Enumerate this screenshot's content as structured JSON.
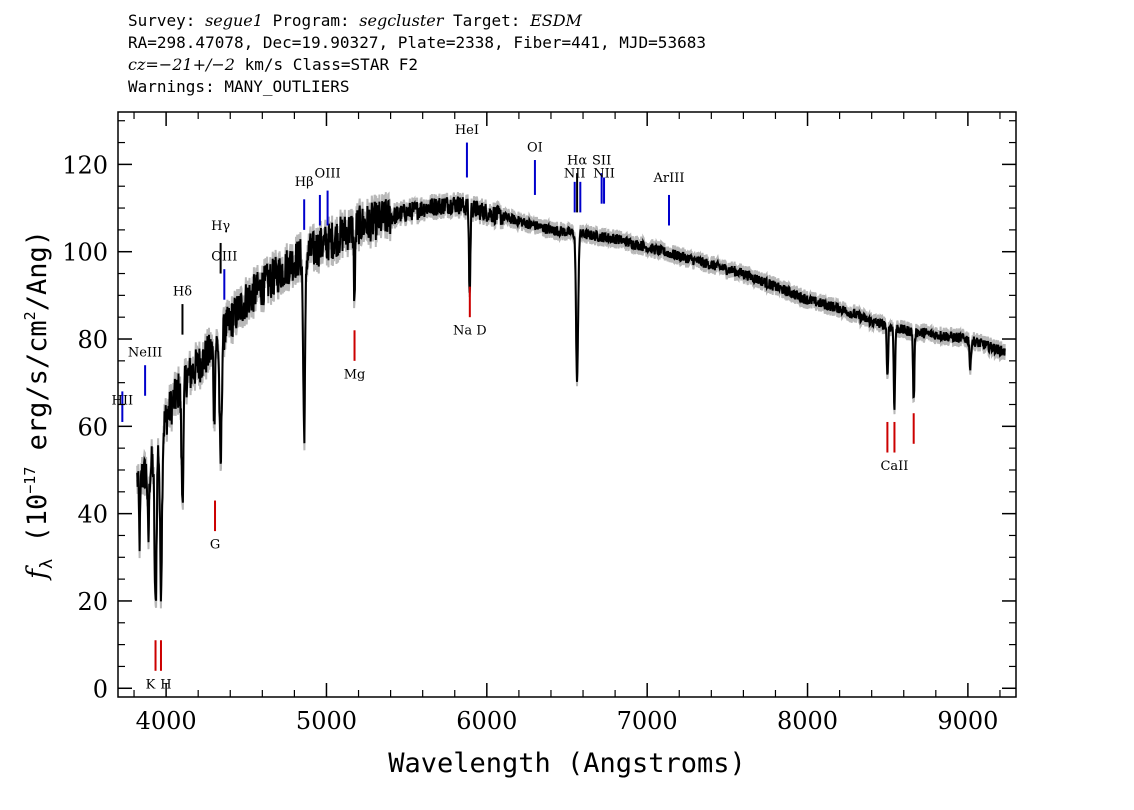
{
  "header": {
    "line1": {
      "survey_label": "Survey:",
      "survey": "segue1",
      "program_label": "Program:",
      "program": "segcluster",
      "target_label": "Target:",
      "target": "ESDM"
    },
    "line2": "RA=298.47078, Dec=19.90327, Plate=2338, Fiber=441, MJD=53683",
    "line3": {
      "cz_label": "cz=",
      "cz": "−21+/−2",
      "rest": " km/s Class=STAR F2"
    },
    "line4": "Warnings: MANY_OUTLIERS"
  },
  "chart_data": {
    "type": "line",
    "xlabel": "Wavelength (Angstroms)",
    "ylabel": "f_λ (10^-17 erg/s/cm^2/Ang)",
    "ylabel_parts": {
      "f": "f",
      "lambda": "λ",
      "open": " (10",
      "exp1": "−17",
      "mid": " erg/s/cm",
      "exp2": "2",
      "close": "/Ang)"
    },
    "xlim": [
      3700,
      9300
    ],
    "ylim": [
      -2,
      132
    ],
    "x_ticks": [
      4000,
      5000,
      6000,
      7000,
      8000,
      9000
    ],
    "x_tick_labels": [
      "4000",
      "5000",
      "6000",
      "7000",
      "8000",
      "9000"
    ],
    "y_ticks": [
      0,
      20,
      40,
      60,
      80,
      100,
      120
    ],
    "y_tick_labels": [
      "0",
      "20",
      "40",
      "60",
      "80",
      "100",
      "120"
    ],
    "grid": false,
    "series": [
      {
        "color": "#000000",
        "error_color": "#b8b8b8",
        "continuum": [
          [
            3820,
            48
          ],
          [
            3900,
            50
          ],
          [
            4000,
            62
          ],
          [
            4100,
            70
          ],
          [
            4200,
            74
          ],
          [
            4300,
            78
          ],
          [
            4400,
            84
          ],
          [
            4500,
            89
          ],
          [
            4600,
            92
          ],
          [
            4700,
            95
          ],
          [
            4800,
            98
          ],
          [
            4900,
            100
          ],
          [
            5000,
            102
          ],
          [
            5100,
            104
          ],
          [
            5200,
            106
          ],
          [
            5300,
            107
          ],
          [
            5400,
            108
          ],
          [
            5500,
            109
          ],
          [
            5600,
            110
          ],
          [
            5700,
            110.5
          ],
          [
            5800,
            111
          ],
          [
            5900,
            110
          ],
          [
            6000,
            109
          ],
          [
            6100,
            108
          ],
          [
            6200,
            107
          ],
          [
            6300,
            106
          ],
          [
            6400,
            105
          ],
          [
            6500,
            104.5
          ],
          [
            6600,
            104
          ],
          [
            6700,
            103.5
          ],
          [
            6800,
            103
          ],
          [
            6900,
            102
          ],
          [
            7000,
            101
          ],
          [
            7200,
            99
          ],
          [
            7400,
            97
          ],
          [
            7600,
            95
          ],
          [
            7800,
            92
          ],
          [
            8000,
            89
          ],
          [
            8200,
            87
          ],
          [
            8400,
            84
          ],
          [
            8600,
            82
          ],
          [
            8800,
            81
          ],
          [
            9000,
            80
          ],
          [
            9230,
            77
          ]
        ],
        "absorption": [
          {
            "x": 3835,
            "depth": 14
          },
          {
            "x": 3889,
            "depth": 16
          },
          {
            "x": 3934,
            "depth": 36
          },
          {
            "x": 3968,
            "depth": 34
          },
          {
            "x": 4102,
            "depth": 26
          },
          {
            "x": 4300,
            "depth": 16
          },
          {
            "x": 4340,
            "depth": 30
          },
          {
            "x": 4861,
            "depth": 40
          },
          {
            "x": 5175,
            "depth": 16
          },
          {
            "x": 5893,
            "depth": 20
          },
          {
            "x": 6563,
            "depth": 34
          },
          {
            "x": 8498,
            "depth": 12
          },
          {
            "x": 8542,
            "depth": 18
          },
          {
            "x": 8662,
            "depth": 16
          },
          {
            "x": 9015,
            "depth": 7
          }
        ]
      }
    ],
    "emission_lines": [
      {
        "label": "HII",
        "x": 3727,
        "y0": 61,
        "y1": 68,
        "label_y": 65,
        "color": "#0000cc"
      },
      {
        "label": "NeIII",
        "x": 3869,
        "y0": 67,
        "y1": 74,
        "label_y": 76,
        "color": "#0000cc"
      },
      {
        "label": "Hδ",
        "x": 4102,
        "y0": 81,
        "y1": 88,
        "label_y": 90,
        "color": "#000000"
      },
      {
        "label": "Hγ",
        "x": 4340,
        "y0": 95,
        "y1": 102,
        "label_y": 105,
        "color": "#000000"
      },
      {
        "label": "OIII",
        "x": 4363,
        "y0": 89,
        "y1": 96,
        "label_y": 98,
        "color": "#0000cc"
      },
      {
        "label": "Hβ",
        "x": 4861,
        "y0": 105,
        "y1": 112,
        "label_y": 115,
        "color": "#0000cc"
      },
      {
        "label": "",
        "x": 4959,
        "y0": 106,
        "y1": 113,
        "label_y": 0,
        "color": "#0000cc"
      },
      {
        "label": "OIII",
        "x": 5007,
        "y0": 106,
        "y1": 114,
        "label_y": 117,
        "color": "#0000cc"
      },
      {
        "label": "HeI",
        "x": 5876,
        "y0": 117,
        "y1": 125,
        "label_y": 127,
        "color": "#0000cc"
      },
      {
        "label": "OI",
        "x": 6300,
        "y0": 113,
        "y1": 121,
        "label_y": 123,
        "color": "#0000cc"
      },
      {
        "label": "NII",
        "x": 6548,
        "y0": 109,
        "y1": 116,
        "label_y": 117,
        "color": "#0000cc"
      },
      {
        "label": "Hα",
        "x": 6563,
        "y0": 109,
        "y1": 118,
        "label_y": 120,
        "color": "#000000"
      },
      {
        "label": "",
        "x": 6583,
        "y0": 109,
        "y1": 116,
        "label_y": 0,
        "color": "#0000cc"
      },
      {
        "label": "SII",
        "x": 6716,
        "y0": 111,
        "y1": 118,
        "label_y": 120,
        "color": "#0000cc"
      },
      {
        "label": "NII",
        "x": 6731,
        "y0": 111,
        "y1": 117,
        "label_y": 117,
        "color": "#0000cc"
      },
      {
        "label": "ArIII",
        "x": 7136,
        "y0": 106,
        "y1": 113,
        "label_y": 116,
        "color": "#0000cc"
      }
    ],
    "absorption_markers": [
      {
        "label": "K",
        "x": 3934,
        "y0": 4,
        "y1": 11,
        "label_y": 0,
        "color": "#cc0000",
        "label_dx": -5
      },
      {
        "label": "H",
        "x": 3968,
        "y0": 4,
        "y1": 11,
        "label_y": 0,
        "color": "#cc0000",
        "label_dx": 5
      },
      {
        "label": "G",
        "x": 4305,
        "y0": 36,
        "y1": 43,
        "label_y": 32,
        "color": "#cc0000",
        "label_dx": 0
      },
      {
        "label": "Mg",
        "x": 5175,
        "y0": 75,
        "y1": 82,
        "label_y": 71,
        "color": "#cc0000",
        "label_dx": 0
      },
      {
        "label": "Na D",
        "x": 5894,
        "y0": 85,
        "y1": 92,
        "label_y": 81,
        "color": "#cc0000",
        "label_dx": 0
      },
      {
        "label": "",
        "x": 8498,
        "y0": 54,
        "y1": 61,
        "label_y": 0,
        "color": "#cc0000",
        "label_dx": 0
      },
      {
        "label": "CaII",
        "x": 8542,
        "y0": 54,
        "y1": 61,
        "label_y": 50,
        "color": "#cc0000",
        "label_dx": 0
      },
      {
        "label": "",
        "x": 8662,
        "y0": 56,
        "y1": 63,
        "label_y": 0,
        "color": "#cc0000",
        "label_dx": 0
      }
    ]
  }
}
